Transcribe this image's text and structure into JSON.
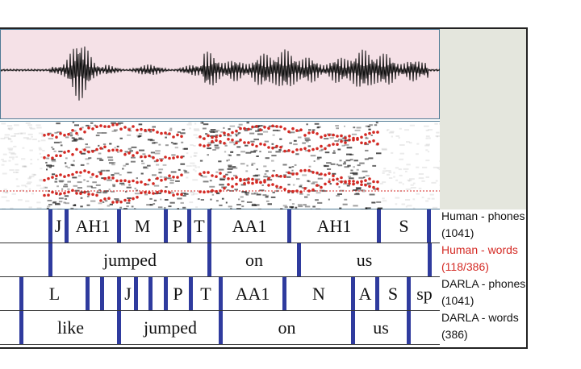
{
  "tiers": [
    {
      "id": "human-phones",
      "name": "Human - phones",
      "count": "(1041)",
      "name_color": "#111111",
      "segments": [
        "J",
        "AH1",
        "M",
        "P",
        "T",
        "AA1",
        "AH1",
        "S"
      ]
    },
    {
      "id": "human-words",
      "name": "Human - words",
      "count": "(118/386)",
      "name_color": "#d42a24",
      "segments": [
        "jumped",
        "on",
        "us"
      ]
    },
    {
      "id": "darla-phones",
      "name": "DARLA - phones",
      "count": "(1041)",
      "name_color": "#111111",
      "segments": [
        "L",
        "J",
        "P",
        "T",
        "AA1",
        "N",
        "A",
        "S",
        "sp"
      ]
    },
    {
      "id": "darla-words",
      "name": "DARLA - words",
      "count": "(386)",
      "name_color": "#111111",
      "segments": [
        "like",
        "jumped",
        "on",
        "us"
      ]
    }
  ],
  "colors": {
    "waveform_bg": "#f5e1e7",
    "boundary": "#2f3b9e",
    "formant_dots": "#d42a24",
    "side_panel": "#e4e6dd"
  }
}
